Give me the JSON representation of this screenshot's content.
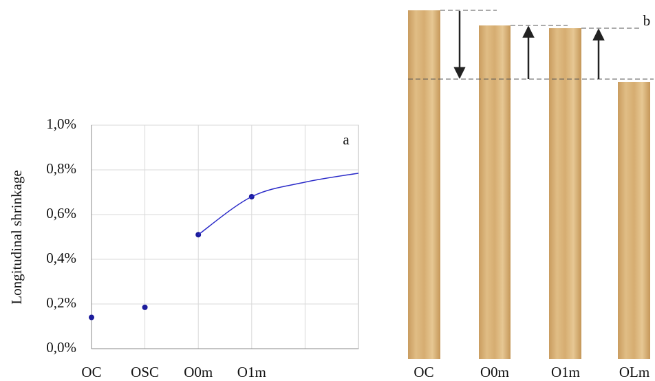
{
  "chart_data": {
    "type": "line",
    "panel_label": "a",
    "ylabel": "Longitudinal shrinkage",
    "categories": [
      "OC",
      "OSC",
      "O0m",
      "O1m",
      null,
      null
    ],
    "series": [
      {
        "color": "#1c1c9c",
        "marker": true,
        "line": false,
        "values": [
          0.14,
          0.185,
          0.51,
          0.68,
          null,
          null
        ]
      },
      {
        "color": "#2a2ac8",
        "marker": false,
        "line": true,
        "values": [
          null,
          null,
          0.51,
          0.68,
          0.745,
          0.785
        ]
      }
    ],
    "ylim": [
      0,
      1
    ],
    "yticks": [
      {
        "value": 0,
        "label": "0,0%"
      },
      {
        "value": 0.2,
        "label": "0,2%"
      },
      {
        "value": 0.4,
        "label": "0,4%"
      },
      {
        "value": 0.6,
        "label": "0,6%"
      },
      {
        "value": 0.8,
        "label": "0,8%"
      },
      {
        "value": 1,
        "label": "1,0%"
      }
    ],
    "grid": true
  },
  "photo": {
    "panel_label": "b",
    "samples": [
      "OC",
      "O0m",
      "O1m",
      "OLm"
    ]
  }
}
